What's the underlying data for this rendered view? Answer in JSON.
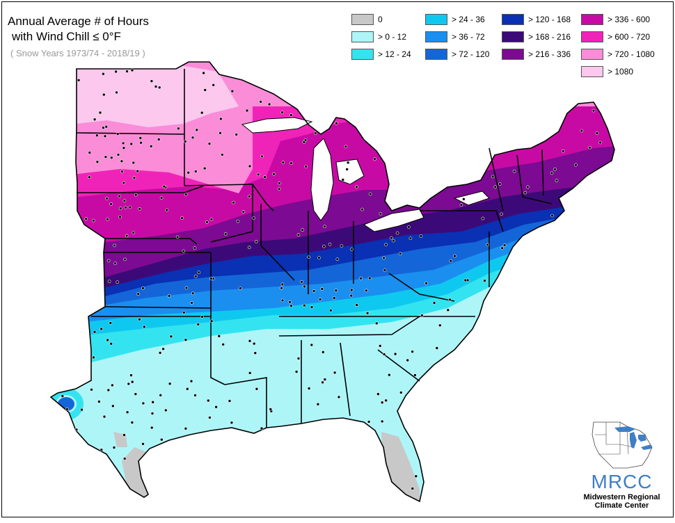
{
  "title": {
    "line1": "Annual Average # of Hours",
    "line2": "with Wind Chill ≤ 0°F",
    "subtitle": "( Snow Years 1973/74 - 2018/19 )"
  },
  "legend": [
    {
      "label": "0",
      "color": "#c8c8c8"
    },
    {
      "label": "> 0 - 12",
      "color": "#aef5f8"
    },
    {
      "label": "> 12 - 24",
      "color": "#33e4f0"
    },
    {
      "label": "> 24 - 36",
      "color": "#0fc8f0"
    },
    {
      "label": "> 36 - 72",
      "color": "#1a8ff0"
    },
    {
      "label": "> 72 - 120",
      "color": "#1466d8"
    },
    {
      "label": "> 120 - 168",
      "color": "#0a30b4"
    },
    {
      "label": "> 168 - 216",
      "color": "#3c0a78"
    },
    {
      "label": "> 216 - 336",
      "color": "#7d0a92"
    },
    {
      "label": "> 336 - 600",
      "color": "#c80aa5"
    },
    {
      "label": "> 600 - 720",
      "color": "#f023b9"
    },
    {
      "label": "> 720 - 1080",
      "color": "#fa8cd8"
    },
    {
      "label": "> 1080",
      "color": "#fcc8ee"
    }
  ],
  "logo": {
    "abbr": "MRCC",
    "name_line1": "Midwestern Regional",
    "name_line2": "Climate Center"
  }
}
